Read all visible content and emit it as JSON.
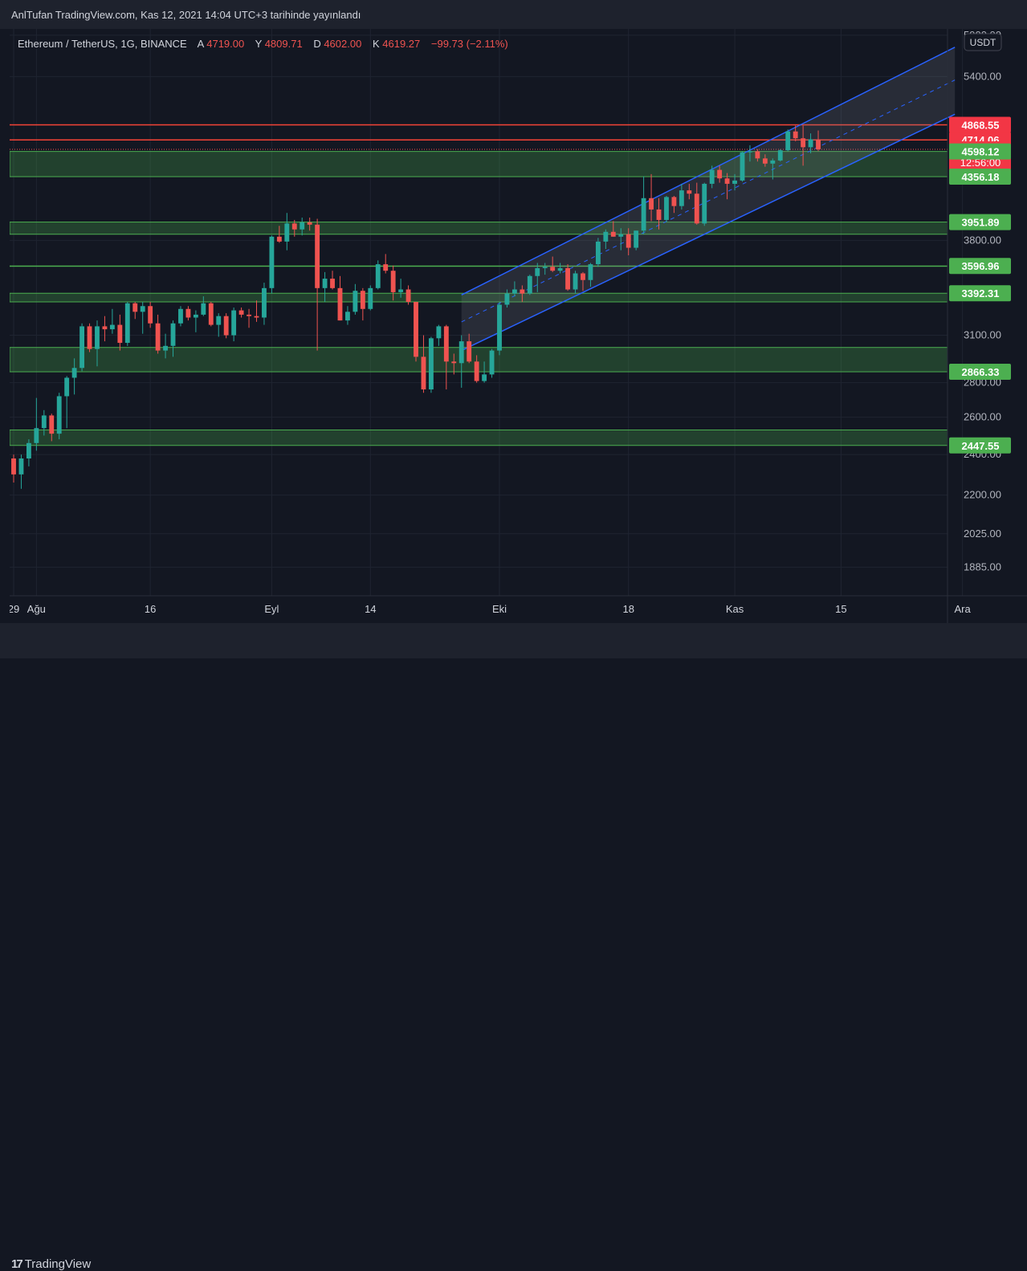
{
  "header": {
    "published_line": "AnlTufan TradingView.com, Kas 12, 2021 14:04 UTC+3 tarihinde yayınlandı"
  },
  "legend": {
    "symbol": "Ethereum / TetherUS, 1G, BINANCE",
    "o_label": "A",
    "o_value": "4719.00",
    "h_label": "Y",
    "h_value": "4809.71",
    "l_label": "D",
    "l_value": "4602.00",
    "c_label": "K",
    "c_value": "4619.27",
    "change": "−99.73 (−2.11%)"
  },
  "currency_badge": "USDT",
  "footer": {
    "brand": "TradingView"
  },
  "colors": {
    "bg": "#131722",
    "up": "#26a69a",
    "down": "#ef5350",
    "zone": "#4caf50",
    "resistance": "#f44336",
    "channel": "#2962ff"
  },
  "chart_data": {
    "type": "candlestick",
    "y_axis": {
      "ticks": [
        1885,
        2025,
        2200,
        2400,
        2600,
        2800,
        3100,
        3800,
        5400,
        5900
      ],
      "tick_labels": [
        "1885.00",
        "2025.00",
        "2200.00",
        "2400.00",
        "2600.00",
        "2800.00",
        "3100.00",
        "3800.00",
        "5400.00",
        "5900.00"
      ],
      "top_partial_label": "6",
      "scale": "log"
    },
    "x_axis": {
      "labels": [
        {
          "date": "2021-07-29",
          "text": "29"
        },
        {
          "date": "2021-08-01",
          "text": "Ağu"
        },
        {
          "date": "2021-08-16",
          "text": "16"
        },
        {
          "date": "2021-09-01",
          "text": "Eyl"
        },
        {
          "date": "2021-09-14",
          "text": "14"
        },
        {
          "date": "2021-10-01",
          "text": "Eki"
        },
        {
          "date": "2021-10-18",
          "text": "18"
        },
        {
          "date": "2021-11-01",
          "text": "Kas"
        },
        {
          "date": "2021-11-15",
          "text": "15"
        },
        {
          "date": "2021-12-01",
          "text": "Ara"
        }
      ]
    },
    "price_badges": [
      {
        "value": 4868.55,
        "text": "4868.55",
        "color": "#f23645"
      },
      {
        "value": 4714.06,
        "text": "4714.06",
        "color": "#f23645"
      },
      {
        "value": 4619.27,
        "text": "4619.27",
        "sub": "12:56:00",
        "color": "#f23645"
      },
      {
        "value": 4598.12,
        "text": "4598.12",
        "color": "#4caf50"
      },
      {
        "value": 4356.18,
        "text": "4356.18",
        "color": "#4caf50"
      },
      {
        "value": 3951.89,
        "text": "3951.89",
        "color": "#4caf50"
      },
      {
        "value": 3596.96,
        "text": "3596.96",
        "color": "#4caf50"
      },
      {
        "value": 3392.31,
        "text": "3392.31",
        "color": "#4caf50"
      },
      {
        "value": 2866.33,
        "text": "2866.33",
        "color": "#4caf50"
      },
      {
        "value": 2447.55,
        "text": "2447.55",
        "color": "#4caf50"
      }
    ],
    "resistance_lines": [
      4868.55,
      4714.06
    ],
    "support_zones": [
      {
        "low": 4356.18,
        "high": 4598.12
      },
      {
        "low": 3850,
        "high": 3951.89
      },
      {
        "low": 3596.96,
        "high": 3596.96
      },
      {
        "low": 3330,
        "high": 3392.31
      },
      {
        "low": 2866.33,
        "high": 3020
      },
      {
        "low": 2447.55,
        "high": 2530
      }
    ],
    "channel": {
      "start_date": "2021-09-26",
      "end_date": "2021-11-30",
      "upper": [
        3380,
        5750
      ],
      "lower": [
        3000,
        4980
      ],
      "mid": [
        3190,
        5360
      ]
    },
    "candles": [
      {
        "date": "2021-07-29",
        "o": 2380,
        "h": 2400,
        "l": 2260,
        "c": 2300
      },
      {
        "date": "2021-07-30",
        "o": 2300,
        "h": 2400,
        "l": 2230,
        "c": 2380
      },
      {
        "date": "2021-07-31",
        "o": 2380,
        "h": 2480,
        "l": 2340,
        "c": 2460
      },
      {
        "date": "2021-08-01",
        "o": 2460,
        "h": 2710,
        "l": 2420,
        "c": 2540
      },
      {
        "date": "2021-08-02",
        "o": 2540,
        "h": 2640,
        "l": 2500,
        "c": 2610
      },
      {
        "date": "2021-08-03",
        "o": 2610,
        "h": 2620,
        "l": 2470,
        "c": 2510
      },
      {
        "date": "2021-08-04",
        "o": 2510,
        "h": 2740,
        "l": 2480,
        "c": 2720
      },
      {
        "date": "2021-08-05",
        "o": 2720,
        "h": 2840,
        "l": 2540,
        "c": 2830
      },
      {
        "date": "2021-08-06",
        "o": 2830,
        "h": 2950,
        "l": 2730,
        "c": 2890
      },
      {
        "date": "2021-08-07",
        "o": 2890,
        "h": 3180,
        "l": 2870,
        "c": 3160
      },
      {
        "date": "2021-08-08",
        "o": 3160,
        "h": 3180,
        "l": 2990,
        "c": 3010
      },
      {
        "date": "2021-08-09",
        "o": 3010,
        "h": 3200,
        "l": 2900,
        "c": 3160
      },
      {
        "date": "2021-08-10",
        "o": 3160,
        "h": 3230,
        "l": 3060,
        "c": 3140
      },
      {
        "date": "2021-08-11",
        "o": 3140,
        "h": 3280,
        "l": 3110,
        "c": 3170
      },
      {
        "date": "2021-08-12",
        "o": 3170,
        "h": 3240,
        "l": 3000,
        "c": 3050
      },
      {
        "date": "2021-08-13",
        "o": 3050,
        "h": 3330,
        "l": 3030,
        "c": 3320
      },
      {
        "date": "2021-08-14",
        "o": 3320,
        "h": 3330,
        "l": 3210,
        "c": 3260
      },
      {
        "date": "2021-08-15",
        "o": 3260,
        "h": 3330,
        "l": 3110,
        "c": 3300
      },
      {
        "date": "2021-08-16",
        "o": 3300,
        "h": 3330,
        "l": 3150,
        "c": 3180
      },
      {
        "date": "2021-08-17",
        "o": 3180,
        "h": 3240,
        "l": 2980,
        "c": 3000
      },
      {
        "date": "2021-08-18",
        "o": 3000,
        "h": 3110,
        "l": 2950,
        "c": 3030
      },
      {
        "date": "2021-08-19",
        "o": 3030,
        "h": 3200,
        "l": 2960,
        "c": 3180
      },
      {
        "date": "2021-08-20",
        "o": 3180,
        "h": 3300,
        "l": 3160,
        "c": 3280
      },
      {
        "date": "2021-08-21",
        "o": 3280,
        "h": 3300,
        "l": 3200,
        "c": 3220
      },
      {
        "date": "2021-08-22",
        "o": 3220,
        "h": 3270,
        "l": 3120,
        "c": 3240
      },
      {
        "date": "2021-08-23",
        "o": 3240,
        "h": 3370,
        "l": 3230,
        "c": 3320
      },
      {
        "date": "2021-08-24",
        "o": 3320,
        "h": 3330,
        "l": 3160,
        "c": 3170
      },
      {
        "date": "2021-08-25",
        "o": 3170,
        "h": 3250,
        "l": 3090,
        "c": 3230
      },
      {
        "date": "2021-08-26",
        "o": 3230,
        "h": 3250,
        "l": 3080,
        "c": 3100
      },
      {
        "date": "2021-08-27",
        "o": 3100,
        "h": 3290,
        "l": 3060,
        "c": 3270
      },
      {
        "date": "2021-08-28",
        "o": 3270,
        "h": 3290,
        "l": 3220,
        "c": 3240
      },
      {
        "date": "2021-08-29",
        "o": 3240,
        "h": 3280,
        "l": 3150,
        "c": 3230
      },
      {
        "date": "2021-08-30",
        "o": 3230,
        "h": 3340,
        "l": 3190,
        "c": 3220
      },
      {
        "date": "2021-08-31",
        "o": 3220,
        "h": 3470,
        "l": 3170,
        "c": 3430
      },
      {
        "date": "2021-09-01",
        "o": 3430,
        "h": 3840,
        "l": 3390,
        "c": 3830
      },
      {
        "date": "2021-09-02",
        "o": 3830,
        "h": 3920,
        "l": 3780,
        "c": 3790
      },
      {
        "date": "2021-09-03",
        "o": 3790,
        "h": 4030,
        "l": 3720,
        "c": 3940
      },
      {
        "date": "2021-09-04",
        "o": 3940,
        "h": 3970,
        "l": 3830,
        "c": 3890
      },
      {
        "date": "2021-09-05",
        "o": 3890,
        "h": 3990,
        "l": 3840,
        "c": 3950
      },
      {
        "date": "2021-09-06",
        "o": 3950,
        "h": 3990,
        "l": 3880,
        "c": 3930
      },
      {
        "date": "2021-09-07",
        "o": 3930,
        "h": 3980,
        "l": 3000,
        "c": 3430
      },
      {
        "date": "2021-09-08",
        "o": 3430,
        "h": 3550,
        "l": 3330,
        "c": 3500
      },
      {
        "date": "2021-09-09",
        "o": 3500,
        "h": 3560,
        "l": 3420,
        "c": 3430
      },
      {
        "date": "2021-09-10",
        "o": 3430,
        "h": 3520,
        "l": 3200,
        "c": 3200
      },
      {
        "date": "2021-09-11",
        "o": 3200,
        "h": 3300,
        "l": 3170,
        "c": 3260
      },
      {
        "date": "2021-09-12",
        "o": 3260,
        "h": 3460,
        "l": 3240,
        "c": 3410
      },
      {
        "date": "2021-09-13",
        "o": 3410,
        "h": 3430,
        "l": 3200,
        "c": 3280
      },
      {
        "date": "2021-09-14",
        "o": 3280,
        "h": 3450,
        "l": 3270,
        "c": 3430
      },
      {
        "date": "2021-09-15",
        "o": 3430,
        "h": 3640,
        "l": 3420,
        "c": 3610
      },
      {
        "date": "2021-09-16",
        "o": 3610,
        "h": 3690,
        "l": 3540,
        "c": 3560
      },
      {
        "date": "2021-09-17",
        "o": 3560,
        "h": 3600,
        "l": 3340,
        "c": 3400
      },
      {
        "date": "2021-09-18",
        "o": 3400,
        "h": 3500,
        "l": 3360,
        "c": 3420
      },
      {
        "date": "2021-09-19",
        "o": 3420,
        "h": 3450,
        "l": 3310,
        "c": 3330
      },
      {
        "date": "2021-09-20",
        "o": 3330,
        "h": 3330,
        "l": 2930,
        "c": 2960
      },
      {
        "date": "2021-09-21",
        "o": 2960,
        "h": 3100,
        "l": 2740,
        "c": 2760
      },
      {
        "date": "2021-09-22",
        "o": 2760,
        "h": 3090,
        "l": 2740,
        "c": 3080
      },
      {
        "date": "2021-09-23",
        "o": 3080,
        "h": 3170,
        "l": 3030,
        "c": 3160
      },
      {
        "date": "2021-09-24",
        "o": 3160,
        "h": 3170,
        "l": 2760,
        "c": 2930
      },
      {
        "date": "2021-09-25",
        "o": 2930,
        "h": 2980,
        "l": 2850,
        "c": 2920
      },
      {
        "date": "2021-09-26",
        "o": 2920,
        "h": 3100,
        "l": 2770,
        "c": 3060
      },
      {
        "date": "2021-09-27",
        "o": 3060,
        "h": 3110,
        "l": 2920,
        "c": 2930
      },
      {
        "date": "2021-09-28",
        "o": 2930,
        "h": 2970,
        "l": 2800,
        "c": 2810
      },
      {
        "date": "2021-09-29",
        "o": 2810,
        "h": 2930,
        "l": 2800,
        "c": 2850
      },
      {
        "date": "2021-09-30",
        "o": 2850,
        "h": 3010,
        "l": 2830,
        "c": 3000
      },
      {
        "date": "2021-10-01",
        "o": 3000,
        "h": 3330,
        "l": 2970,
        "c": 3310
      },
      {
        "date": "2021-10-02",
        "o": 3310,
        "h": 3420,
        "l": 3290,
        "c": 3390
      },
      {
        "date": "2021-10-03",
        "o": 3390,
        "h": 3480,
        "l": 3370,
        "c": 3420
      },
      {
        "date": "2021-10-04",
        "o": 3420,
        "h": 3450,
        "l": 3330,
        "c": 3390
      },
      {
        "date": "2021-10-05",
        "o": 3390,
        "h": 3530,
        "l": 3380,
        "c": 3520
      },
      {
        "date": "2021-10-06",
        "o": 3520,
        "h": 3620,
        "l": 3400,
        "c": 3580
      },
      {
        "date": "2021-10-07",
        "o": 3580,
        "h": 3620,
        "l": 3530,
        "c": 3590
      },
      {
        "date": "2021-10-08",
        "o": 3590,
        "h": 3670,
        "l": 3550,
        "c": 3560
      },
      {
        "date": "2021-10-09",
        "o": 3560,
        "h": 3620,
        "l": 3540,
        "c": 3580
      },
      {
        "date": "2021-10-10",
        "o": 3580,
        "h": 3610,
        "l": 3410,
        "c": 3420
      },
      {
        "date": "2021-10-11",
        "o": 3420,
        "h": 3560,
        "l": 3390,
        "c": 3540
      },
      {
        "date": "2021-10-12",
        "o": 3540,
        "h": 3550,
        "l": 3410,
        "c": 3490
      },
      {
        "date": "2021-10-13",
        "o": 3490,
        "h": 3620,
        "l": 3440,
        "c": 3610
      },
      {
        "date": "2021-10-14",
        "o": 3610,
        "h": 3820,
        "l": 3590,
        "c": 3790
      },
      {
        "date": "2021-10-15",
        "o": 3790,
        "h": 3890,
        "l": 3730,
        "c": 3870
      },
      {
        "date": "2021-10-16",
        "o": 3870,
        "h": 3960,
        "l": 3830,
        "c": 3830
      },
      {
        "date": "2021-10-17",
        "o": 3830,
        "h": 3900,
        "l": 3720,
        "c": 3850
      },
      {
        "date": "2021-10-18",
        "o": 3850,
        "h": 3900,
        "l": 3680,
        "c": 3740
      },
      {
        "date": "2021-10-19",
        "o": 3740,
        "h": 3880,
        "l": 3720,
        "c": 3880
      },
      {
        "date": "2021-10-20",
        "o": 3880,
        "h": 4360,
        "l": 3850,
        "c": 4160
      },
      {
        "date": "2021-10-21",
        "o": 4160,
        "h": 4380,
        "l": 3960,
        "c": 4060
      },
      {
        "date": "2021-10-22",
        "o": 4060,
        "h": 4160,
        "l": 3890,
        "c": 3970
      },
      {
        "date": "2021-10-23",
        "o": 3970,
        "h": 4180,
        "l": 3950,
        "c": 4170
      },
      {
        "date": "2021-10-24",
        "o": 4170,
        "h": 4180,
        "l": 4030,
        "c": 4090
      },
      {
        "date": "2021-10-25",
        "o": 4090,
        "h": 4290,
        "l": 4060,
        "c": 4230
      },
      {
        "date": "2021-10-26",
        "o": 4230,
        "h": 4290,
        "l": 4150,
        "c": 4200
      },
      {
        "date": "2021-10-27",
        "o": 4200,
        "h": 4300,
        "l": 3930,
        "c": 3940
      },
      {
        "date": "2021-10-28",
        "o": 3940,
        "h": 4300,
        "l": 3920,
        "c": 4290
      },
      {
        "date": "2021-10-29",
        "o": 4290,
        "h": 4460,
        "l": 4250,
        "c": 4420
      },
      {
        "date": "2021-10-30",
        "o": 4420,
        "h": 4460,
        "l": 4300,
        "c": 4340
      },
      {
        "date": "2021-10-31",
        "o": 4340,
        "h": 4390,
        "l": 4150,
        "c": 4290
      },
      {
        "date": "2021-11-01",
        "o": 4290,
        "h": 4380,
        "l": 4230,
        "c": 4320
      },
      {
        "date": "2021-11-02",
        "o": 4320,
        "h": 4600,
        "l": 4310,
        "c": 4590
      },
      {
        "date": "2021-11-03",
        "o": 4590,
        "h": 4660,
        "l": 4500,
        "c": 4600
      },
      {
        "date": "2021-11-04",
        "o": 4600,
        "h": 4620,
        "l": 4500,
        "c": 4530
      },
      {
        "date": "2021-11-05",
        "o": 4530,
        "h": 4570,
        "l": 4450,
        "c": 4480
      },
      {
        "date": "2021-11-06",
        "o": 4480,
        "h": 4530,
        "l": 4330,
        "c": 4510
      },
      {
        "date": "2021-11-07",
        "o": 4510,
        "h": 4620,
        "l": 4500,
        "c": 4610
      },
      {
        "date": "2021-11-08",
        "o": 4610,
        "h": 4820,
        "l": 4600,
        "c": 4800
      },
      {
        "date": "2021-11-09",
        "o": 4800,
        "h": 4860,
        "l": 4700,
        "c": 4730
      },
      {
        "date": "2021-11-10",
        "o": 4730,
        "h": 4860,
        "l": 4460,
        "c": 4640
      },
      {
        "date": "2021-11-11",
        "o": 4640,
        "h": 4780,
        "l": 4580,
        "c": 4720
      },
      {
        "date": "2021-11-12",
        "o": 4719,
        "h": 4809.71,
        "l": 4602,
        "c": 4619.27
      }
    ]
  }
}
